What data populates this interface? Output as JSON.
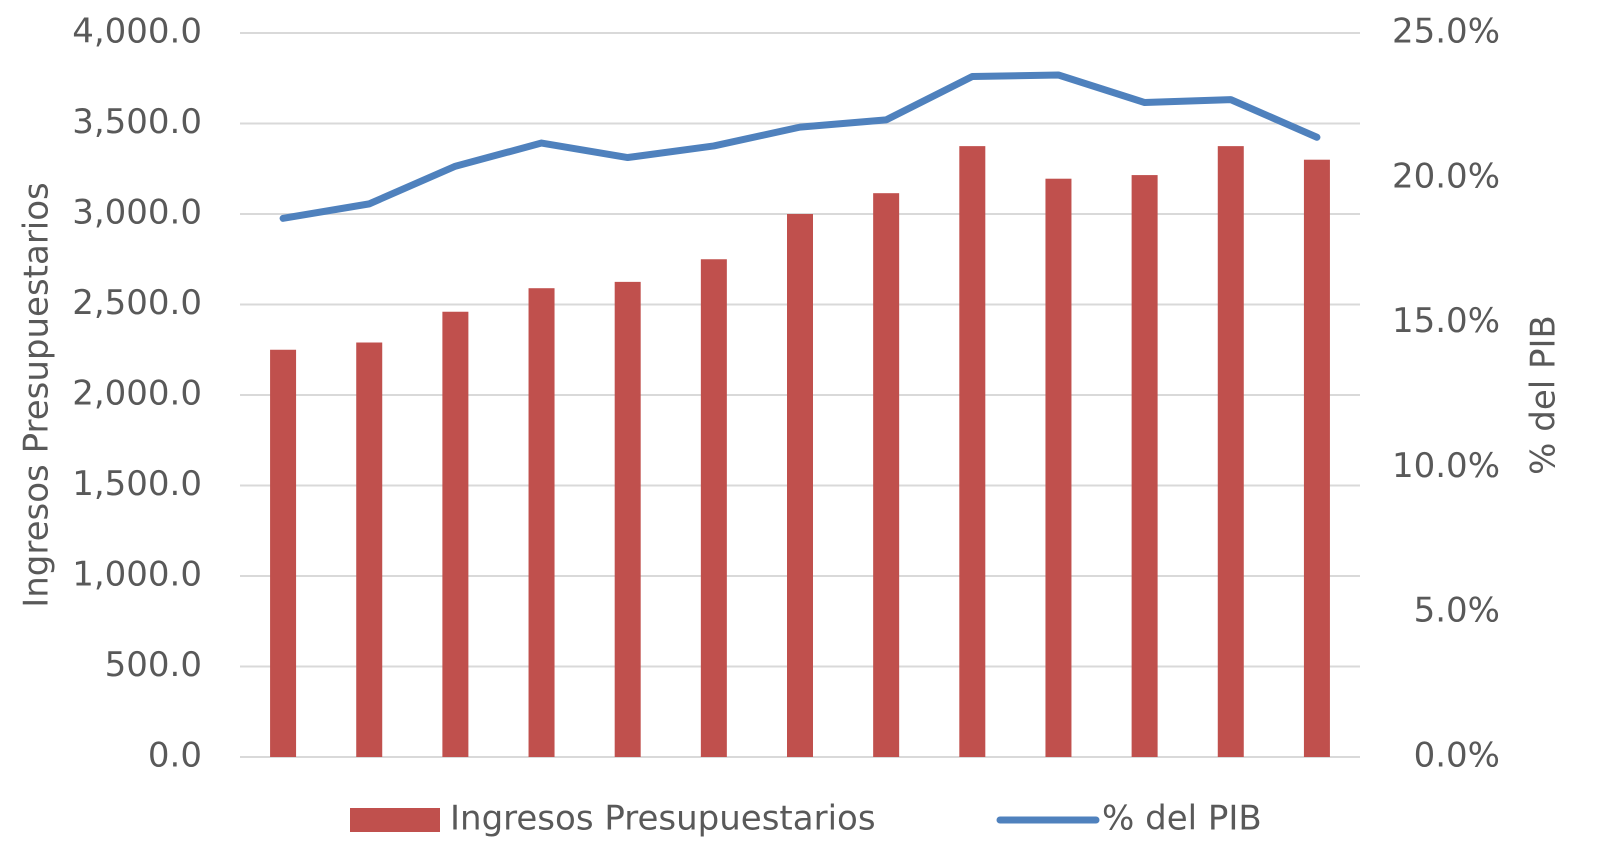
{
  "chart_data": {
    "type": "bar-line",
    "categories": [
      null,
      null,
      null,
      null,
      null,
      null,
      null,
      null,
      null,
      null,
      null,
      null,
      null
    ],
    "series": [
      {
        "name": "Ingresos Presupuestarios",
        "type": "bar",
        "color": "#c0504d",
        "axis": "y",
        "values": [
          2250,
          2290,
          2460,
          2590,
          2625,
          2750,
          3000,
          3115,
          3375,
          3195,
          3215,
          3375,
          3300
        ]
      },
      {
        "name": "% del PIB",
        "type": "line",
        "color": "#4f81bd",
        "axis": "y2",
        "values": [
          18.6,
          19.1,
          20.4,
          21.2,
          20.7,
          21.1,
          21.75,
          22.0,
          23.5,
          23.55,
          22.6,
          22.7,
          21.4
        ]
      }
    ],
    "ylabel": "Ingresos Presupuestarios",
    "y2label": "% del PIB",
    "ylim": [
      0,
      4000
    ],
    "yticks": [
      {
        "value": 0,
        "label": "0.0"
      },
      {
        "value": 500,
        "label": "500.0"
      },
      {
        "value": 1000,
        "label": "1,000.0"
      },
      {
        "value": 1500,
        "label": "1,500.0"
      },
      {
        "value": 2000,
        "label": "2,000.0"
      },
      {
        "value": 2500,
        "label": "2,500.0"
      },
      {
        "value": 3000,
        "label": "3,000.0"
      },
      {
        "value": 3500,
        "label": "3,500.0"
      },
      {
        "value": 4000,
        "label": "4,000.0"
      }
    ],
    "y2lim": [
      0,
      25
    ],
    "y2ticks": [
      {
        "value": 0,
        "label": "0.0%"
      },
      {
        "value": 5,
        "label": "5.0%"
      },
      {
        "value": 10,
        "label": "10.0%"
      },
      {
        "value": 15,
        "label": "15.0%"
      },
      {
        "value": 20,
        "label": "20.0%"
      },
      {
        "value": 25,
        "label": "25.0%"
      }
    ],
    "grid": true,
    "legend": "bottom"
  }
}
